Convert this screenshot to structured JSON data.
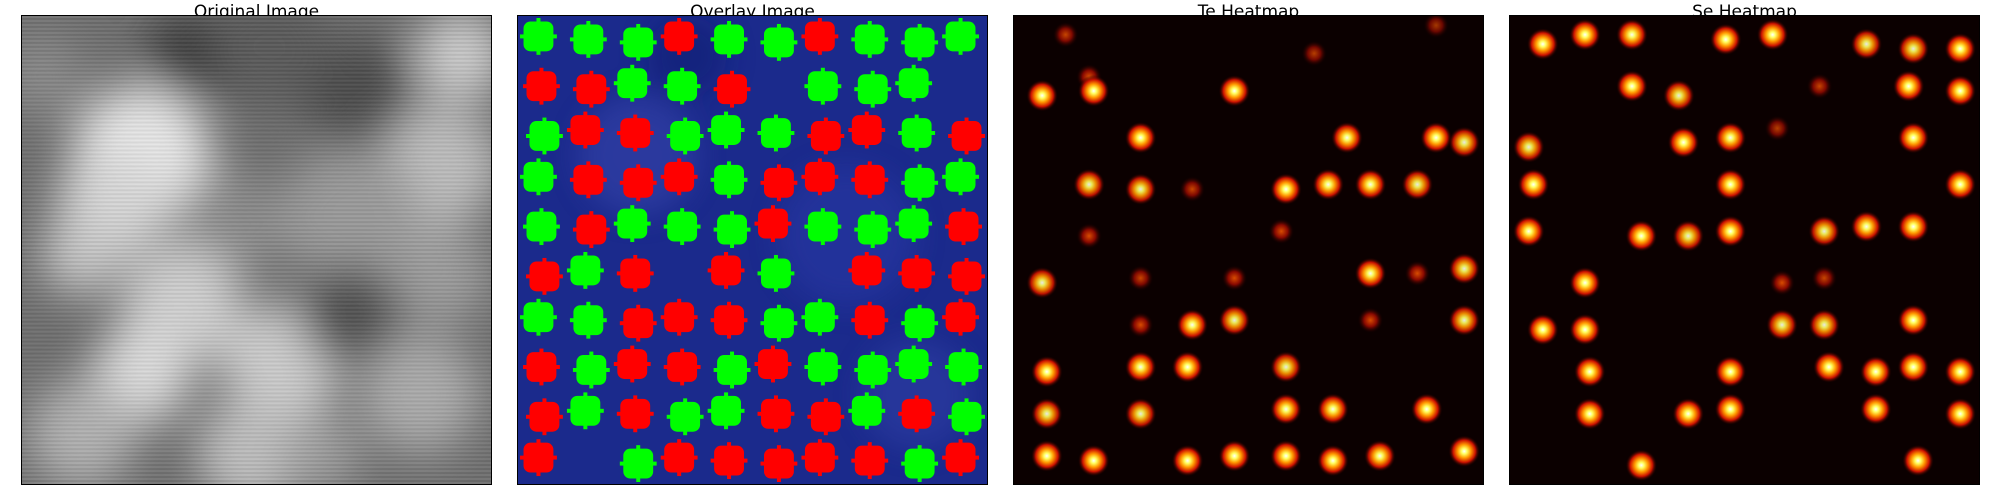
{
  "figure": {
    "panels": [
      {
        "id": "original",
        "title": "Original Image"
      },
      {
        "id": "overlay",
        "title": "Overlay Image"
      },
      {
        "id": "te",
        "title": "Te Heatmap"
      },
      {
        "id": "se",
        "title": "Se Heatmap"
      }
    ]
  },
  "colors": {
    "green_marker": "#00ff00",
    "red_marker": "#ff0000",
    "overlay_bg": "#1b2a8c",
    "heat_bg": "#0b0000"
  },
  "overlay_grid": {
    "rows": [
      [
        "G",
        "G",
        "G",
        "R",
        "G",
        "G",
        "R",
        "G",
        "G",
        "G"
      ],
      [
        "R",
        "R",
        "G",
        "G",
        "R",
        "",
        "G",
        "G",
        "G",
        ""
      ],
      [
        "G",
        "R",
        "R",
        "G",
        "G",
        "G",
        "R",
        "R",
        "G",
        "R"
      ],
      [
        "G",
        "R",
        "R",
        "R",
        "G",
        "R",
        "R",
        "R",
        "G",
        "G"
      ],
      [
        "G",
        "R",
        "G",
        "G",
        "G",
        "R",
        "G",
        "G",
        "G",
        "R"
      ],
      [
        "R",
        "G",
        "R",
        "",
        "R",
        "G",
        "",
        "R",
        "R",
        "R"
      ],
      [
        "G",
        "G",
        "R",
        "R",
        "R",
        "G",
        "G",
        "R",
        "G",
        "R"
      ],
      [
        "R",
        "G",
        "R",
        "R",
        "G",
        "R",
        "G",
        "G",
        "G",
        "G"
      ],
      [
        "R",
        "G",
        "R",
        "G",
        "G",
        "R",
        "R",
        "G",
        "R",
        "G"
      ],
      [
        "R",
        "",
        "G",
        "R",
        "R",
        "R",
        "R",
        "R",
        "G",
        "R"
      ]
    ]
  },
  "te_spots": [
    [
      0.11,
      0.04,
      0.6
    ],
    [
      0.16,
      0.13,
      0.7
    ],
    [
      0.64,
      0.08,
      0.5
    ],
    [
      0.9,
      0.02,
      0.4
    ],
    [
      0.06,
      0.17,
      1
    ],
    [
      0.17,
      0.16,
      1
    ],
    [
      0.47,
      0.16,
      1
    ],
    [
      0.27,
      0.26,
      1
    ],
    [
      0.71,
      0.26,
      0.9
    ],
    [
      0.9,
      0.26,
      1
    ],
    [
      0.96,
      0.27,
      0.8
    ],
    [
      0.16,
      0.36,
      0.8
    ],
    [
      0.27,
      0.37,
      0.8
    ],
    [
      0.38,
      0.37,
      0.6
    ],
    [
      0.58,
      0.37,
      1
    ],
    [
      0.67,
      0.36,
      0.9
    ],
    [
      0.76,
      0.36,
      0.9
    ],
    [
      0.86,
      0.36,
      0.8
    ],
    [
      0.16,
      0.47,
      0.7
    ],
    [
      0.57,
      0.46,
      0.7
    ],
    [
      0.06,
      0.57,
      0.8
    ],
    [
      0.27,
      0.56,
      0.6
    ],
    [
      0.47,
      0.56,
      0.7
    ],
    [
      0.76,
      0.55,
      0.9
    ],
    [
      0.86,
      0.55,
      0.7
    ],
    [
      0.96,
      0.54,
      0.8
    ],
    [
      0.27,
      0.66,
      0.7
    ],
    [
      0.38,
      0.66,
      0.9
    ],
    [
      0.47,
      0.65,
      0.8
    ],
    [
      0.76,
      0.65,
      0.7
    ],
    [
      0.96,
      0.65,
      0.8
    ],
    [
      0.07,
      0.76,
      1
    ],
    [
      0.27,
      0.75,
      0.9
    ],
    [
      0.37,
      0.75,
      1
    ],
    [
      0.58,
      0.75,
      0.8
    ],
    [
      0.07,
      0.85,
      0.8
    ],
    [
      0.27,
      0.85,
      0.8
    ],
    [
      0.58,
      0.84,
      0.9
    ],
    [
      0.68,
      0.84,
      0.9
    ],
    [
      0.88,
      0.84,
      1
    ],
    [
      0.07,
      0.94,
      1
    ],
    [
      0.17,
      0.95,
      1
    ],
    [
      0.37,
      0.95,
      1
    ],
    [
      0.47,
      0.94,
      1
    ],
    [
      0.58,
      0.94,
      1
    ],
    [
      0.68,
      0.95,
      1
    ],
    [
      0.78,
      0.94,
      0.9
    ],
    [
      0.96,
      0.93,
      1
    ]
  ],
  "se_spots": [
    [
      0.07,
      0.06,
      1
    ],
    [
      0.16,
      0.04,
      1
    ],
    [
      0.26,
      0.04,
      0.9
    ],
    [
      0.46,
      0.05,
      1
    ],
    [
      0.56,
      0.04,
      1
    ],
    [
      0.76,
      0.06,
      0.8
    ],
    [
      0.86,
      0.07,
      0.8
    ],
    [
      0.96,
      0.07,
      1
    ],
    [
      0.26,
      0.15,
      1
    ],
    [
      0.36,
      0.17,
      0.8
    ],
    [
      0.66,
      0.15,
      0.6
    ],
    [
      0.85,
      0.15,
      1
    ],
    [
      0.96,
      0.16,
      1
    ],
    [
      0.04,
      0.28,
      0.8
    ],
    [
      0.37,
      0.27,
      1
    ],
    [
      0.47,
      0.26,
      0.9
    ],
    [
      0.57,
      0.24,
      0.5
    ],
    [
      0.86,
      0.26,
      1
    ],
    [
      0.05,
      0.36,
      1
    ],
    [
      0.47,
      0.36,
      1
    ],
    [
      0.96,
      0.36,
      1
    ],
    [
      0.04,
      0.46,
      1
    ],
    [
      0.28,
      0.47,
      1
    ],
    [
      0.38,
      0.47,
      0.8
    ],
    [
      0.47,
      0.46,
      1
    ],
    [
      0.67,
      0.46,
      0.8
    ],
    [
      0.76,
      0.45,
      0.9
    ],
    [
      0.86,
      0.45,
      1
    ],
    [
      0.16,
      0.57,
      1
    ],
    [
      0.58,
      0.57,
      0.7
    ],
    [
      0.67,
      0.56,
      0.6
    ],
    [
      0.07,
      0.67,
      1
    ],
    [
      0.16,
      0.67,
      1
    ],
    [
      0.58,
      0.66,
      0.8
    ],
    [
      0.67,
      0.66,
      0.8
    ],
    [
      0.86,
      0.65,
      1
    ],
    [
      0.17,
      0.76,
      1
    ],
    [
      0.47,
      0.76,
      1
    ],
    [
      0.68,
      0.75,
      1
    ],
    [
      0.78,
      0.76,
      1
    ],
    [
      0.86,
      0.75,
      1
    ],
    [
      0.96,
      0.76,
      1
    ],
    [
      0.17,
      0.85,
      1
    ],
    [
      0.38,
      0.85,
      1
    ],
    [
      0.47,
      0.84,
      1
    ],
    [
      0.78,
      0.84,
      1
    ],
    [
      0.96,
      0.85,
      1
    ],
    [
      0.28,
      0.96,
      1
    ],
    [
      0.87,
      0.95,
      1
    ]
  ]
}
